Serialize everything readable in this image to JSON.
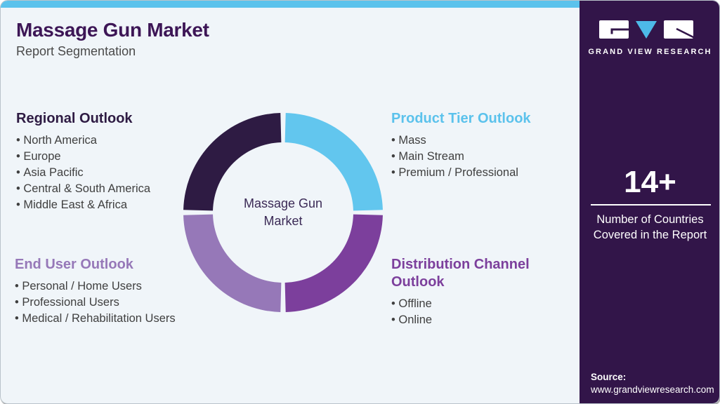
{
  "header": {
    "title": "Massage Gun Market",
    "subtitle": "Report Segmentation"
  },
  "colors": {
    "accent_cyan": "#5bc2ec",
    "dark_purple": "#2e1b43",
    "medium_purple": "#7c3f9c",
    "light_purple": "#9678b8",
    "sidebar_bg": "#321549",
    "title_purple": "#3d1656",
    "body_text": "#3f3f3f",
    "panel_bg": "#f0f5f9",
    "center_text": "#3b2a56"
  },
  "segments": {
    "regional": {
      "heading": "Regional Outlook",
      "items": [
        "North America",
        "Europe",
        "Asia Pacific",
        "Central & South America",
        "Middle East & Africa"
      ]
    },
    "product_tier": {
      "heading": "Product Tier Outlook",
      "items": [
        "Mass",
        "Main Stream",
        "Premium / Professional"
      ]
    },
    "end_user": {
      "heading": "End User Outlook",
      "items": [
        "Personal / Home Users",
        "Professional Users",
        "Medical / Rehabilitation Users"
      ]
    },
    "distribution": {
      "heading": "Distribution Channel Outlook",
      "items": [
        "Offline",
        "Online"
      ]
    }
  },
  "chart_data": {
    "type": "pie",
    "donut": true,
    "center_label": "Massage Gun\nMarket",
    "legend_position": "none",
    "slices": [
      {
        "name": "Product Tier Outlook",
        "value": 25,
        "color": "#62c6ee"
      },
      {
        "name": "Distribution Channel Outlook",
        "value": 25,
        "color": "#7c3f9c"
      },
      {
        "name": "End User Outlook",
        "value": 25,
        "color": "#9678b8"
      },
      {
        "name": "Regional Outlook",
        "value": 25,
        "color": "#2e1b43"
      }
    ]
  },
  "sidebar": {
    "logo_wordmark": "GRAND VIEW RESEARCH",
    "countries_count": "14+",
    "countries_caption": "Number of Countries Covered in the Report",
    "source_label": "Source:",
    "source_url": "www.grandviewresearch.com"
  }
}
